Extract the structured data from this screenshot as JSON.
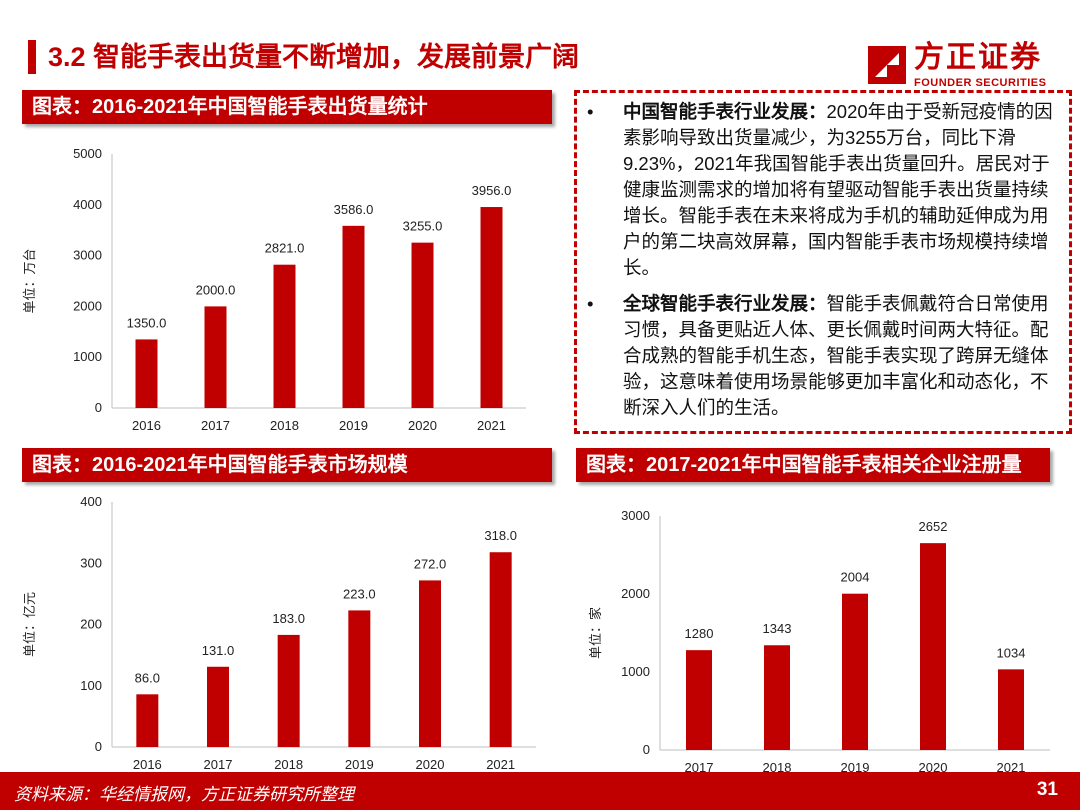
{
  "page": {
    "title": "3.2 智能手表出货量不断增加，发展前景广阔",
    "logo_cn": "方正证券",
    "logo_en": "FOUNDER SECURITIES",
    "source": "资料来源：华经情报网，方正证券研究所整理",
    "page_number": "31"
  },
  "colors": {
    "accent": "#c00000",
    "bar": "#c00000"
  },
  "text_box": {
    "bullets": [
      {
        "marker": "•",
        "heading": "中国智能手表行业发展：",
        "body": "2020年由于受新冠疫情的因素影响导致出货量减少，为3255万台，同比下滑9.23%，2021年我国智能手表出货量回升。居民对于健康监测需求的增加将有望驱动智能手表出货量持续增长。智能手表在未来将成为手机的辅助延伸成为用户的第二块高效屏幕，国内智能手表市场规模持续增长。"
      },
      {
        "marker": "•",
        "heading": "全球智能手表行业发展：",
        "body": "智能手表佩戴符合日常使用习惯，具备更贴近人体、更长佩戴时间两大特征。配合成熟的智能手机生态，智能手表实现了跨屏无缝体验，这意味着使用场景能够更加丰富化和动态化，不断深入人们的生活。"
      }
    ]
  },
  "chart_data": [
    {
      "type": "bar",
      "title": "图表：2016-2021年中国智能手表出货量统计",
      "ylabel": "单位：万台",
      "categories": [
        "2016",
        "2017",
        "2018",
        "2019",
        "2020",
        "2021"
      ],
      "values": [
        1350.0,
        2000.0,
        2821.0,
        3586.0,
        3255.0,
        3956.0
      ],
      "value_labels": [
        "1350.0",
        "2000.0",
        "2821.0",
        "3586.0",
        "3255.0",
        "3956.0"
      ],
      "ylim": [
        0,
        5000
      ],
      "yticks": [
        0,
        1000,
        2000,
        3000,
        4000,
        5000
      ],
      "grid": false,
      "legend": "none"
    },
    {
      "type": "bar",
      "title": "图表：2016-2021年中国智能手表市场规模",
      "ylabel": "单位：亿元",
      "categories": [
        "2016",
        "2017",
        "2018",
        "2019",
        "2020",
        "2021"
      ],
      "values": [
        86.0,
        131.0,
        183.0,
        223.0,
        272.0,
        318.0
      ],
      "value_labels": [
        "86.0",
        "131.0",
        "183.0",
        "223.0",
        "272.0",
        "318.0"
      ],
      "ylim": [
        0,
        400
      ],
      "yticks": [
        0,
        100,
        200,
        300,
        400
      ],
      "grid": false,
      "legend": "none"
    },
    {
      "type": "bar",
      "title": "图表：2017-2021年中国智能手表相关企业注册量",
      "ylabel": "单位：家",
      "categories": [
        "2017",
        "2018",
        "2019",
        "2020",
        "2021"
      ],
      "values": [
        1280,
        1343,
        2004,
        2652,
        1034
      ],
      "value_labels": [
        "1280",
        "1343",
        "2004",
        "2652",
        "1034"
      ],
      "ylim": [
        0,
        3000
      ],
      "yticks": [
        0,
        1000,
        2000,
        3000
      ],
      "grid": false,
      "legend": "none"
    }
  ]
}
